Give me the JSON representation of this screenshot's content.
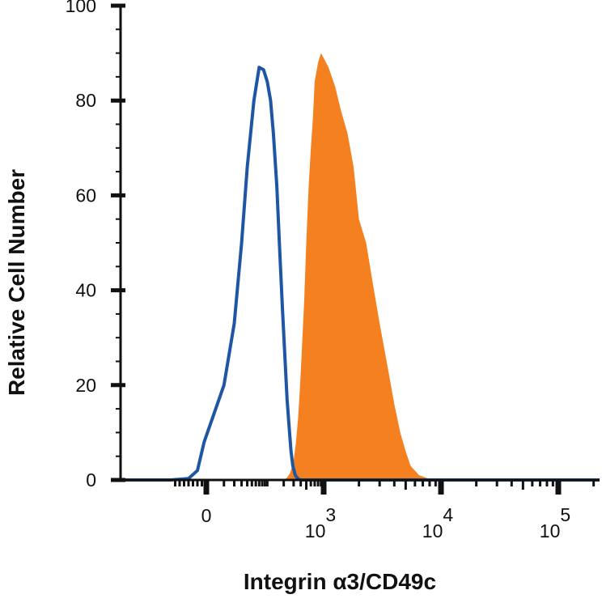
{
  "chart_data": {
    "type": "area",
    "title": "",
    "xlabel": "Integrin α3/CD49c",
    "ylabel": "Relative Cell Number",
    "x_scale": "biexponential",
    "ylim": [
      0,
      100
    ],
    "y_ticks": [
      "0",
      "20",
      "40",
      "60",
      "80",
      "100"
    ],
    "x_ticks": [
      {
        "value": 0,
        "base": "0",
        "exp": ""
      },
      {
        "value": 1000,
        "base": "10",
        "exp": "3"
      },
      {
        "value": 10000,
        "base": "10",
        "exp": "4"
      },
      {
        "value": 100000,
        "base": "10",
        "exp": "5"
      }
    ],
    "grid": false,
    "legend": "none",
    "series": [
      {
        "style": "outline",
        "color": "#1f56a3",
        "points": [
          [
            -80,
            0
          ],
          [
            -40,
            0.3
          ],
          [
            -20,
            2
          ],
          [
            -5,
            8
          ],
          [
            10,
            20
          ],
          [
            20,
            33
          ],
          [
            30,
            50
          ],
          [
            40,
            66
          ],
          [
            55,
            80
          ],
          [
            70,
            87
          ],
          [
            85,
            86.5
          ],
          [
            100,
            84
          ],
          [
            115,
            80
          ],
          [
            130,
            73
          ],
          [
            150,
            62
          ],
          [
            170,
            48
          ],
          [
            190,
            36
          ],
          [
            210,
            26
          ],
          [
            230,
            17
          ],
          [
            250,
            11
          ],
          [
            270,
            6
          ],
          [
            290,
            3
          ],
          [
            320,
            1
          ],
          [
            360,
            0.2
          ],
          [
            400,
            0
          ]
        ]
      },
      {
        "style": "filled",
        "color": "#f5801f",
        "points": [
          [
            200,
            0
          ],
          [
            230,
            0.5
          ],
          [
            260,
            1.5
          ],
          [
            300,
            4
          ],
          [
            330,
            8
          ],
          [
            360,
            13
          ],
          [
            390,
            20
          ],
          [
            420,
            28
          ],
          [
            460,
            38
          ],
          [
            500,
            50
          ],
          [
            550,
            62
          ],
          [
            600,
            70
          ],
          [
            650,
            76
          ],
          [
            700,
            84
          ],
          [
            800,
            88
          ],
          [
            900,
            90
          ],
          [
            1000,
            89
          ],
          [
            1100,
            87
          ],
          [
            1250,
            83
          ],
          [
            1400,
            78
          ],
          [
            1600,
            73
          ],
          [
            1800,
            66
          ],
          [
            2000,
            55
          ],
          [
            2300,
            50
          ],
          [
            2600,
            42
          ],
          [
            3000,
            33
          ],
          [
            3500,
            24
          ],
          [
            4000,
            16
          ],
          [
            4500,
            10
          ],
          [
            5000,
            6
          ],
          [
            5500,
            3
          ],
          [
            6500,
            1
          ],
          [
            8000,
            0.2
          ],
          [
            9000,
            0
          ]
        ]
      }
    ]
  }
}
